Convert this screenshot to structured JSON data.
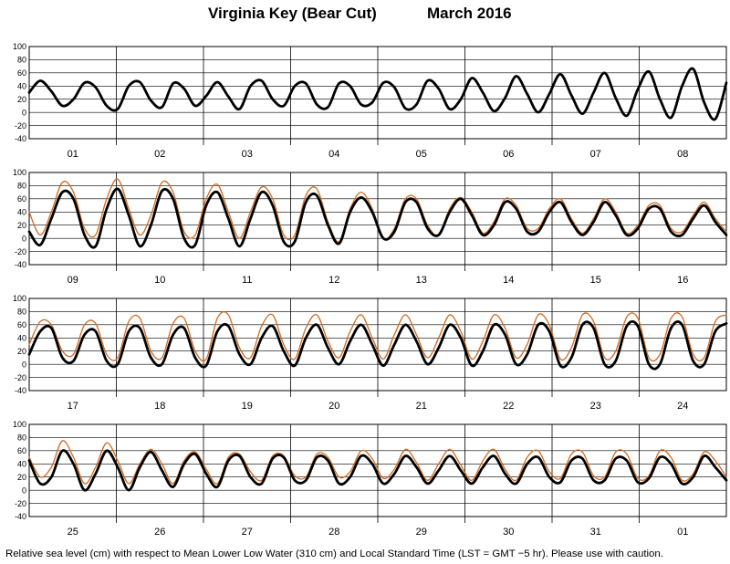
{
  "header": {
    "location": "Virginia Key (Bear Cut)",
    "month_year": "March   2016"
  },
  "footer": {
    "note": "Relative sea level (cm) with respect to Mean Lower Low Water (310 cm) and Local Standard Time (LST = GMT −5 hr). Please use with caution."
  },
  "colors": {
    "predicted": "#000000",
    "observed": "#d2691e",
    "grid": "#000000",
    "background": "#ffffff"
  },
  "chart_data": {
    "type": "line",
    "title": "Virginia Key (Bear Cut)   March 2016",
    "ylabel": "",
    "xlabel": "",
    "ylim": [
      -40,
      100
    ],
    "yticks": [
      -40,
      -20,
      0,
      20,
      40,
      60,
      80,
      100
    ],
    "grid": true,
    "sample_interval_hours": 3,
    "panels": [
      {
        "days": [
          "01",
          "02",
          "03",
          "04",
          "05",
          "06",
          "07",
          "08"
        ],
        "series": [
          {
            "values": [
              30,
              48,
              32,
              10,
              20,
              45,
              38,
              10,
              5,
              40,
              46,
              18,
              8,
              44,
              36,
              10,
              25,
              46,
              24,
              5,
              40,
              48,
              20,
              10,
              40,
              44,
              12,
              8,
              44,
              40,
              12,
              15,
              45,
              38,
              6,
              12,
              48,
              36,
              5,
              20,
              52,
              30,
              2,
              22,
              55,
              28,
              0,
              28,
              58,
              26,
              -2,
              30,
              60,
              22,
              -5,
              35,
              62,
              20,
              -8,
              40,
              66,
              15,
              -10,
              45
            ]
          },
          {
            "values": [
              null,
              null,
              null,
              null,
              null,
              null,
              null,
              null,
              null,
              null,
              null,
              null,
              null,
              null,
              null,
              null,
              null,
              null,
              null,
              null,
              null,
              null,
              null,
              null,
              null,
              null,
              null,
              null,
              null,
              null,
              null,
              null,
              null,
              null,
              null,
              null,
              null,
              null,
              null,
              null,
              null,
              null,
              null,
              null,
              null,
              null,
              null,
              null,
              null,
              null,
              null,
              null,
              null,
              null,
              null,
              null,
              null,
              null,
              null,
              null,
              null,
              null,
              null,
              null
            ]
          }
        ]
      },
      {
        "days": [
          "09",
          "10",
          "11",
          "12",
          "13",
          "14",
          "15",
          "16"
        ],
        "series": [
          {
            "values": [
              10,
              -10,
              30,
              70,
              60,
              5,
              -12,
              45,
              75,
              35,
              -12,
              20,
              72,
              60,
              0,
              -10,
              50,
              70,
              30,
              -12,
              30,
              70,
              50,
              -5,
              -5,
              55,
              65,
              20,
              -8,
              40,
              62,
              40,
              0,
              10,
              55,
              55,
              15,
              5,
              40,
              60,
              35,
              5,
              20,
              55,
              45,
              10,
              10,
              40,
              55,
              25,
              5,
              25,
              55,
              35,
              5,
              15,
              45,
              45,
              10,
              5,
              30,
              50,
              25,
              5
            ]
          },
          {
            "values": [
              40,
              5,
              40,
              85,
              70,
              15,
              5,
              60,
              90,
              45,
              5,
              35,
              85,
              70,
              10,
              5,
              60,
              82,
              40,
              0,
              40,
              78,
              60,
              5,
              5,
              65,
              75,
              25,
              -5,
              45,
              70,
              45,
              0,
              15,
              60,
              60,
              20,
              5,
              45,
              62,
              40,
              8,
              25,
              60,
              50,
              15,
              15,
              45,
              60,
              30,
              8,
              30,
              60,
              40,
              8,
              20,
              50,
              50,
              15,
              10,
              35,
              55,
              30,
              10
            ]
          }
        ]
      },
      {
        "days": [
          "17",
          "18",
          "19",
          "20",
          "21",
          "22",
          "23",
          "24"
        ],
        "series": [
          {
            "values": [
              15,
              50,
              55,
              10,
              5,
              45,
              50,
              5,
              0,
              50,
              55,
              10,
              0,
              45,
              55,
              10,
              -2,
              50,
              58,
              15,
              0,
              40,
              58,
              20,
              -2,
              40,
              60,
              25,
              0,
              35,
              60,
              30,
              -2,
              30,
              60,
              35,
              0,
              25,
              60,
              40,
              -2,
              20,
              60,
              45,
              0,
              15,
              60,
              50,
              -2,
              10,
              60,
              55,
              0,
              5,
              58,
              58,
              0,
              0,
              55,
              60,
              5,
              0,
              50,
              62
            ]
          },
          {
            "values": [
              30,
              65,
              60,
              20,
              15,
              60,
              62,
              15,
              10,
              65,
              70,
              20,
              10,
              62,
              70,
              20,
              8,
              70,
              75,
              25,
              10,
              58,
              75,
              30,
              8,
              55,
              75,
              35,
              10,
              50,
              75,
              40,
              8,
              45,
              75,
              45,
              10,
              40,
              75,
              50,
              8,
              35,
              75,
              55,
              10,
              30,
              75,
              60,
              8,
              25,
              75,
              65,
              10,
              20,
              72,
              70,
              10,
              15,
              70,
              72,
              15,
              10,
              65,
              75
            ]
          }
        ]
      },
      {
        "days": [
          "25",
          "26",
          "27",
          "28",
          "29",
          "30",
          "31",
          "01"
        ],
        "series": [
          {
            "values": [
              45,
              10,
              20,
              60,
              40,
              0,
              25,
              60,
              35,
              0,
              35,
              58,
              30,
              5,
              40,
              55,
              25,
              5,
              45,
              52,
              20,
              10,
              48,
              50,
              15,
              15,
              50,
              45,
              10,
              20,
              52,
              40,
              10,
              25,
              52,
              35,
              10,
              30,
              52,
              30,
              10,
              35,
              52,
              25,
              10,
              40,
              50,
              20,
              12,
              45,
              48,
              15,
              15,
              48,
              45,
              12,
              18,
              50,
              40,
              10,
              20,
              52,
              35,
              15
            ]
          },
          {
            "values": [
              50,
              20,
              35,
              75,
              50,
              10,
              35,
              72,
              45,
              10,
              40,
              62,
              40,
              10,
              45,
              58,
              32,
              10,
              50,
              55,
              28,
              15,
              52,
              52,
              22,
              20,
              55,
              50,
              20,
              28,
              60,
              48,
              18,
              32,
              62,
              42,
              15,
              40,
              62,
              38,
              15,
              45,
              62,
              32,
              15,
              50,
              60,
              28,
              18,
              55,
              58,
              22,
              20,
              58,
              55,
              18,
              22,
              60,
              50,
              15,
              25,
              58,
              45,
              20
            ]
          }
        ]
      }
    ]
  }
}
